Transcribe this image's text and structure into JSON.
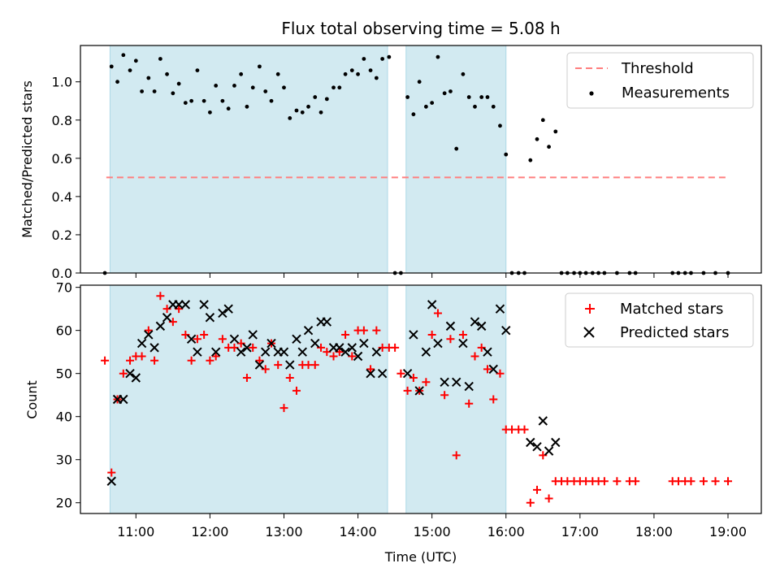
{
  "title": "Flux total observing time = 5.08 h",
  "colors": {
    "threshold": "#ff7f7f",
    "measurement": "#000000",
    "matched": "#ff0000",
    "predicted": "#000000",
    "shade": "#add8e6"
  },
  "chart_data": [
    {
      "type": "scatter",
      "ylabel": "Matched/Predicted stars",
      "ylim": [
        0,
        1.19
      ],
      "yticks": [
        "0.0",
        "0.2",
        "0.4",
        "0.6",
        "0.8",
        "1.0"
      ],
      "grid": false,
      "legend_position": "top-right",
      "legend": [
        "Threshold",
        "Measurements"
      ],
      "threshold": {
        "name": "Threshold",
        "value": 0.5,
        "from": 10.6,
        "to": 19.0
      },
      "shaded_intervals": [
        [
          10.65,
          14.4
        ],
        [
          14.65,
          16.0
        ]
      ],
      "series": [
        {
          "name": "Measurements",
          "x": [
            10.58,
            10.67,
            10.75,
            10.83,
            10.92,
            11.0,
            11.08,
            11.17,
            11.25,
            11.33,
            11.42,
            11.5,
            11.58,
            11.67,
            11.75,
            11.83,
            11.92,
            12.0,
            12.08,
            12.17,
            12.25,
            12.33,
            12.42,
            12.5,
            12.58,
            12.67,
            12.75,
            12.83,
            12.92,
            13.0,
            13.08,
            13.17,
            13.25,
            13.33,
            13.42,
            13.5,
            13.58,
            13.67,
            13.75,
            13.83,
            13.92,
            14.0,
            14.08,
            14.17,
            14.25,
            14.33,
            14.42,
            14.5,
            14.58,
            14.67,
            14.75,
            14.83,
            14.92,
            15.0,
            15.08,
            15.17,
            15.25,
            15.33,
            15.42,
            15.5,
            15.58,
            15.67,
            15.75,
            15.83,
            15.92,
            16.0,
            16.08,
            16.17,
            16.25,
            16.33,
            16.42,
            16.5,
            16.58,
            16.67,
            16.75,
            16.83,
            16.92,
            17.0,
            17.08,
            17.17,
            17.25,
            17.33,
            17.5,
            17.67,
            17.75,
            18.25,
            18.33,
            18.42,
            18.5,
            18.67,
            18.83,
            19.0
          ],
          "y": [
            0.0,
            1.08,
            1.0,
            1.14,
            1.06,
            1.11,
            0.95,
            1.02,
            0.95,
            1.12,
            1.04,
            0.94,
            0.99,
            0.89,
            0.9,
            1.06,
            0.9,
            0.84,
            0.98,
            0.9,
            0.86,
            0.98,
            1.04,
            0.87,
            0.97,
            1.08,
            0.95,
            0.9,
            1.04,
            0.97,
            0.81,
            0.85,
            0.84,
            0.87,
            0.92,
            0.84,
            0.91,
            0.97,
            0.97,
            1.04,
            1.06,
            1.04,
            1.12,
            1.06,
            1.02,
            1.12,
            1.13,
            0.0,
            0.0,
            0.92,
            0.83,
            1.0,
            0.87,
            0.89,
            1.13,
            0.94,
            0.95,
            0.65,
            1.04,
            0.92,
            0.87,
            0.92,
            0.92,
            0.87,
            0.77,
            0.62,
            0.0,
            0.0,
            0.0,
            0.59,
            0.7,
            0.8,
            0.66,
            0.74,
            0.0,
            0.0,
            0.0,
            0.0,
            0.0,
            0.0,
            0.0,
            0.0,
            0.0,
            0.0,
            0.0,
            0.0,
            0.0,
            0.0,
            0.0,
            0.0,
            0.0,
            0.0
          ]
        }
      ]
    },
    {
      "type": "scatter",
      "xlabel": "Time (UTC)",
      "ylabel": "Count",
      "xlim": [
        10.25,
        19.45
      ],
      "ylim": [
        17.5,
        70.5
      ],
      "xticks": [
        {
          "value": 11,
          "label": "11:00"
        },
        {
          "value": 12,
          "label": "12:00"
        },
        {
          "value": 13,
          "label": "13:00"
        },
        {
          "value": 14,
          "label": "14:00"
        },
        {
          "value": 15,
          "label": "15:00"
        },
        {
          "value": 16,
          "label": "16:00"
        },
        {
          "value": 17,
          "label": "17:00"
        },
        {
          "value": 18,
          "label": "18:00"
        },
        {
          "value": 19,
          "label": "19:00"
        }
      ],
      "yticks": [
        "20",
        "30",
        "40",
        "50",
        "60",
        "70"
      ],
      "grid": false,
      "legend_position": "top-right",
      "legend": [
        "Matched stars",
        "Predicted stars"
      ],
      "shaded_intervals": [
        [
          10.65,
          14.4
        ],
        [
          14.65,
          16.0
        ]
      ],
      "series": [
        {
          "name": "Matched stars",
          "x": [
            10.58,
            10.67,
            10.75,
            10.83,
            10.92,
            11.0,
            11.08,
            11.17,
            11.25,
            11.33,
            11.42,
            11.5,
            11.58,
            11.67,
            11.75,
            11.83,
            11.92,
            12.0,
            12.08,
            12.17,
            12.25,
            12.33,
            12.42,
            12.5,
            12.58,
            12.67,
            12.75,
            12.83,
            12.92,
            13.0,
            13.08,
            13.17,
            13.25,
            13.33,
            13.42,
            13.5,
            13.58,
            13.67,
            13.75,
            13.83,
            13.92,
            14.0,
            14.08,
            14.17,
            14.25,
            14.33,
            14.42,
            14.5,
            14.58,
            14.67,
            14.75,
            14.83,
            14.92,
            15.0,
            15.08,
            15.17,
            15.25,
            15.33,
            15.42,
            15.5,
            15.58,
            15.67,
            15.75,
            15.83,
            15.92,
            16.0,
            16.08,
            16.17,
            16.25,
            16.33,
            16.42,
            16.5,
            16.58,
            16.67,
            16.75,
            16.83,
            16.92,
            17.0,
            17.08,
            17.17,
            17.25,
            17.33,
            17.5,
            17.67,
            17.75,
            18.25,
            18.33,
            18.42,
            18.5,
            18.67,
            18.83,
            19.0
          ],
          "y": [
            53,
            27,
            44,
            50,
            53,
            54,
            54,
            60,
            53,
            68,
            65,
            62,
            65,
            59,
            53,
            58,
            59,
            53,
            54,
            58,
            56,
            56,
            57,
            49,
            56,
            53,
            51,
            57,
            52,
            42,
            49,
            46,
            52,
            52,
            52,
            56,
            55,
            54,
            55,
            59,
            54,
            60,
            60,
            51,
            60,
            56,
            56,
            56,
            50,
            46,
            49,
            46,
            48,
            59,
            64,
            45,
            58,
            31,
            59,
            43,
            54,
            56,
            51,
            44,
            50,
            37,
            37,
            37,
            37,
            20,
            23,
            31,
            21,
            25,
            25,
            25,
            25,
            25,
            25,
            25,
            25,
            25,
            25,
            25,
            25,
            25,
            25,
            25,
            25,
            25,
            25,
            25
          ]
        },
        {
          "name": "Predicted stars",
          "x": [
            10.67,
            10.75,
            10.83,
            10.92,
            11.0,
            11.08,
            11.17,
            11.25,
            11.33,
            11.42,
            11.5,
            11.58,
            11.67,
            11.75,
            11.83,
            11.92,
            12.0,
            12.08,
            12.17,
            12.25,
            12.33,
            12.42,
            12.5,
            12.58,
            12.67,
            12.75,
            12.83,
            12.92,
            13.0,
            13.08,
            13.17,
            13.25,
            13.33,
            13.42,
            13.5,
            13.58,
            13.67,
            13.75,
            13.83,
            13.92,
            14.0,
            14.08,
            14.17,
            14.25,
            14.33,
            14.67,
            14.75,
            14.83,
            14.92,
            15.0,
            15.08,
            15.17,
            15.25,
            15.33,
            15.42,
            15.5,
            15.58,
            15.67,
            15.75,
            15.83,
            15.92,
            16.0,
            16.33,
            16.42,
            16.5,
            16.58,
            16.67
          ],
          "y": [
            25,
            44,
            44,
            50,
            49,
            57,
            59,
            56,
            61,
            63,
            66,
            66,
            66,
            58,
            55,
            66,
            63,
            55,
            64,
            65,
            58,
            55,
            56,
            59,
            52,
            55,
            57,
            55,
            55,
            52,
            58,
            55,
            60,
            57,
            62,
            62,
            56,
            56,
            55,
            56,
            54,
            57,
            50,
            55,
            50,
            50,
            59,
            46,
            55,
            66,
            57,
            48,
            61,
            48,
            57,
            47,
            62,
            61,
            55,
            51,
            65,
            60,
            34,
            33,
            39,
            32,
            34
          ]
        }
      ]
    }
  ]
}
